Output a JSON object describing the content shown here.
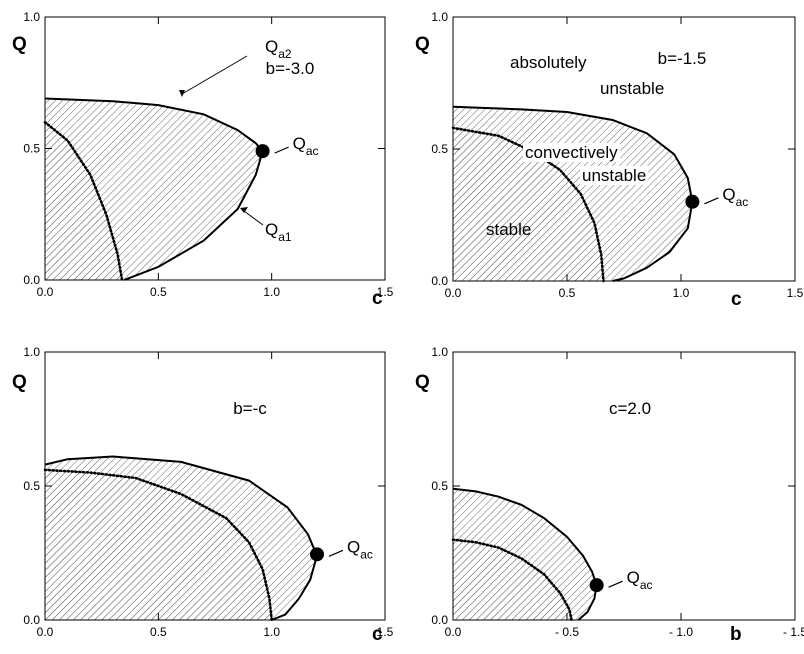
{
  "chart_data": [
    {
      "type": "line",
      "id": "b_minus_3",
      "ylabel": "Q",
      "xlabel": "c",
      "xlim": [
        0,
        1.5
      ],
      "ylim": [
        0,
        1.0
      ],
      "xticks": [
        "0.0",
        "0.5",
        "1.0",
        "1.5"
      ],
      "yticks": [
        "0.0",
        "0.5",
        "1.0"
      ],
      "annotation": "b=-3.0",
      "region_labels": [],
      "series": [
        {
          "role": "absolute-instability-boundary",
          "style": "solid",
          "x": [
            0.0,
            0.3,
            0.5,
            0.7,
            0.85,
            0.93,
            0.96,
            0.93,
            0.85,
            0.7,
            0.5,
            0.35
          ],
          "y": [
            0.69,
            0.68,
            0.665,
            0.63,
            0.57,
            0.52,
            0.49,
            0.4,
            0.27,
            0.15,
            0.05,
            0.0
          ]
        },
        {
          "role": "convective-instability-boundary",
          "style": "dotted",
          "x": [
            0.0,
            0.1,
            0.2,
            0.27,
            0.32,
            0.34
          ],
          "y": [
            0.6,
            0.53,
            0.4,
            0.25,
            0.1,
            0.0
          ]
        }
      ],
      "point": {
        "x": 0.96,
        "y": 0.49,
        "label": "Q",
        "label_sub": "ac"
      },
      "curve_labels": [
        {
          "label": "Q",
          "label_sub": "a2",
          "x": 0.6,
          "y": 0.67
        },
        {
          "label": "Q",
          "label_sub": "a1",
          "x": 0.8,
          "y": 0.27
        }
      ]
    },
    {
      "type": "line",
      "id": "b_minus_1_5",
      "ylabel": "Q",
      "xlabel": "c",
      "xlim": [
        0,
        1.5
      ],
      "ylim": [
        0,
        1.0
      ],
      "xticks": [
        "0.0",
        "0.5",
        "1.0",
        "1.5"
      ],
      "yticks": [
        "0.0",
        "0.5",
        "1.0"
      ],
      "annotation": "b=-1.5",
      "region_labels": [
        {
          "lines": [
            "absolutely",
            "unstable"
          ]
        },
        {
          "lines": [
            "convectively",
            "unstable"
          ]
        },
        {
          "lines": [
            "stable"
          ]
        }
      ],
      "series": [
        {
          "role": "absolute-instability-boundary",
          "style": "solid",
          "x": [
            0.0,
            0.3,
            0.5,
            0.7,
            0.85,
            0.97,
            1.03,
            1.05,
            1.03,
            0.95,
            0.85,
            0.75,
            0.7
          ],
          "y": [
            0.66,
            0.65,
            0.64,
            0.61,
            0.56,
            0.48,
            0.39,
            0.3,
            0.2,
            0.11,
            0.05,
            0.01,
            0.0
          ]
        },
        {
          "role": "convective-instability-boundary",
          "style": "dotted",
          "x": [
            0.0,
            0.2,
            0.35,
            0.47,
            0.56,
            0.62,
            0.65,
            0.66
          ],
          "y": [
            0.58,
            0.55,
            0.49,
            0.42,
            0.33,
            0.22,
            0.1,
            0.0
          ]
        }
      ],
      "point": {
        "x": 1.05,
        "y": 0.3,
        "label": "Q",
        "label_sub": "ac"
      },
      "curve_labels": []
    },
    {
      "type": "line",
      "id": "b_minus_c",
      "ylabel": "Q",
      "xlabel": "c",
      "xlim": [
        0,
        1.5
      ],
      "ylim": [
        0,
        1.0
      ],
      "xticks": [
        "0.0",
        "0.5",
        "1.0",
        "1.5"
      ],
      "yticks": [
        "0.0",
        "0.5",
        "1.0"
      ],
      "annotation": "b=-c",
      "region_labels": [],
      "series": [
        {
          "role": "absolute-instability-boundary",
          "style": "solid",
          "x": [
            0.0,
            0.1,
            0.3,
            0.6,
            0.9,
            1.07,
            1.16,
            1.2,
            1.17,
            1.12,
            1.06,
            1.0
          ],
          "y": [
            0.58,
            0.6,
            0.61,
            0.59,
            0.52,
            0.42,
            0.32,
            0.24,
            0.15,
            0.08,
            0.02,
            0.0
          ]
        },
        {
          "role": "convective-instability-boundary",
          "style": "dotted",
          "x": [
            0.0,
            0.2,
            0.4,
            0.6,
            0.8,
            0.9,
            0.96,
            0.99,
            1.0
          ],
          "y": [
            0.56,
            0.55,
            0.53,
            0.47,
            0.38,
            0.29,
            0.19,
            0.08,
            0.0
          ]
        }
      ],
      "point": {
        "x": 1.2,
        "y": 0.245,
        "label": "Q",
        "label_sub": "ac"
      },
      "curve_labels": []
    },
    {
      "type": "line",
      "id": "c_2_0",
      "ylabel": "Q",
      "xlabel": "b",
      "xlim": [
        0,
        -1.5
      ],
      "ylim": [
        0,
        1.0
      ],
      "xticks": [
        "0.0",
        "- 0.5",
        "- 1.0",
        "- 1.5"
      ],
      "yticks": [
        "0.0",
        "0.5",
        "1.0"
      ],
      "annotation": "c=2.0",
      "region_labels": [],
      "series": [
        {
          "role": "absolute-instability-boundary",
          "style": "solid",
          "x": [
            0.0,
            -0.1,
            -0.2,
            -0.3,
            -0.4,
            -0.5,
            -0.57,
            -0.61,
            -0.63,
            -0.62,
            -0.59,
            -0.55
          ],
          "y": [
            0.49,
            0.48,
            0.46,
            0.43,
            0.38,
            0.31,
            0.24,
            0.18,
            0.13,
            0.08,
            0.03,
            0.0
          ]
        },
        {
          "role": "convective-instability-boundary",
          "style": "dotted",
          "x": [
            0.0,
            -0.1,
            -0.2,
            -0.3,
            -0.4,
            -0.47,
            -0.51,
            -0.52
          ],
          "y": [
            0.3,
            0.29,
            0.27,
            0.23,
            0.17,
            0.1,
            0.04,
            0.0
          ]
        }
      ],
      "point": {
        "x": -0.63,
        "y": 0.13,
        "label": "Q",
        "label_sub": "ac"
      },
      "curve_labels": []
    }
  ]
}
